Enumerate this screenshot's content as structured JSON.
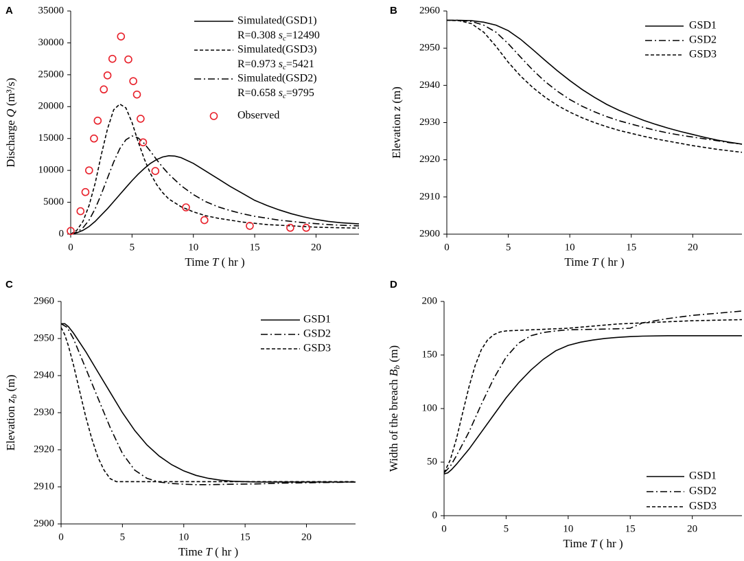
{
  "chart_data": [
    {
      "panel": "A",
      "type": "line",
      "xlabel_pre": "Time ",
      "xlabel_var": "T",
      "xlabel_unit": " ( hr )",
      "ylabel_pre": "Discharge ",
      "ylabel_var": "Q",
      "ylabel_unit": " (m³/s)",
      "xlim": [
        0,
        23.5
      ],
      "ylim": [
        0,
        35000
      ],
      "xticks": [
        0,
        5,
        10,
        15,
        20
      ],
      "yticks": [
        0,
        5000,
        10000,
        15000,
        20000,
        25000,
        30000,
        35000
      ],
      "series": [
        {
          "name": "Simulated(GSD1)",
          "style": "solid",
          "stats": "R=0.308  s_c=12490",
          "x": [
            0,
            0.5,
            1,
            1.5,
            2,
            2.5,
            3,
            3.5,
            4,
            4.5,
            5,
            5.5,
            6,
            6.5,
            7,
            7.5,
            8,
            8.5,
            9,
            10,
            11,
            12,
            13,
            14,
            15,
            16,
            17,
            18,
            19,
            20,
            21,
            22,
            23.5
          ],
          "y": [
            0,
            200,
            600,
            1200,
            2000,
            3000,
            4000,
            5100,
            6200,
            7300,
            8400,
            9400,
            10300,
            11100,
            11700,
            12100,
            12300,
            12250,
            12000,
            11100,
            9900,
            8700,
            7500,
            6400,
            5300,
            4500,
            3800,
            3200,
            2700,
            2300,
            2000,
            1800,
            1600
          ]
        },
        {
          "name": "Simulated(GSD3)",
          "style": "dash",
          "stats": "R=0.973  s_c=5421",
          "x": [
            0,
            0.5,
            1,
            1.5,
            2,
            2.5,
            3,
            3.5,
            4,
            4.5,
            5,
            5.5,
            6,
            6.5,
            7,
            7.5,
            8,
            9,
            10,
            11,
            12,
            13,
            14,
            15,
            16,
            17,
            18,
            19,
            20,
            21,
            22,
            23.5
          ],
          "y": [
            0,
            600,
            2000,
            4500,
            8000,
            12500,
            16500,
            19500,
            20400,
            19800,
            17500,
            14500,
            11800,
            9500,
            7800,
            6500,
            5500,
            4300,
            3500,
            2900,
            2500,
            2200,
            1900,
            1700,
            1500,
            1400,
            1300,
            1200,
            1100,
            1050,
            1000,
            950
          ]
        },
        {
          "name": "Simulated(GSD2)",
          "style": "dashdot",
          "stats": "R=0.658  s_c=9795",
          "x": [
            0,
            0.5,
            1,
            1.5,
            2,
            2.5,
            3,
            3.5,
            4,
            4.5,
            5,
            5.5,
            6,
            6.5,
            7,
            7.5,
            8,
            9,
            10,
            11,
            12,
            13,
            14,
            15,
            16,
            17,
            18,
            19,
            20,
            21,
            22,
            23.5
          ],
          "y": [
            0,
            300,
            1000,
            2200,
            4000,
            6300,
            8800,
            11300,
            13400,
            14800,
            15400,
            15100,
            14200,
            13000,
            11700,
            10500,
            9400,
            7600,
            6200,
            5100,
            4300,
            3700,
            3200,
            2800,
            2500,
            2200,
            2000,
            1800,
            1650,
            1500,
            1400,
            1300
          ]
        }
      ],
      "observed": {
        "name": "Observed",
        "x": [
          0,
          0.8,
          1.2,
          1.5,
          1.9,
          2.2,
          2.7,
          3,
          3.4,
          4.1,
          4.7,
          5.1,
          5.4,
          5.7,
          5.9,
          6.9,
          9.4,
          10.9,
          14.6,
          17.9,
          19.2
        ],
        "y": [
          500,
          3600,
          6600,
          10000,
          15000,
          17800,
          22700,
          24900,
          27500,
          31000,
          27400,
          24000,
          21900,
          18100,
          14400,
          9900,
          4200,
          2200,
          1300,
          1000,
          1000
        ]
      },
      "legend_position": "top-right"
    },
    {
      "panel": "B",
      "type": "line",
      "xlabel_pre": "Time ",
      "xlabel_var": "T",
      "xlabel_unit": " ( hr )",
      "ylabel_pre": "Elevation ",
      "ylabel_var": "z",
      "ylabel_unit": " (m)",
      "xlim": [
        0,
        24
      ],
      "ylim": [
        2900,
        2960
      ],
      "xticks": [
        0,
        5,
        10,
        15,
        20
      ],
      "yticks": [
        2900,
        2910,
        2920,
        2930,
        2940,
        2950,
        2960
      ],
      "series": [
        {
          "name": "GSD1",
          "style": "solid",
          "x": [
            0,
            1,
            2,
            3,
            4,
            5,
            6,
            7,
            8,
            9,
            10,
            11,
            12,
            13,
            14,
            15,
            16,
            17,
            18,
            19,
            20,
            21,
            22,
            23,
            24
          ],
          "y": [
            2957.5,
            2957.5,
            2957.4,
            2957,
            2956.2,
            2954.7,
            2952.4,
            2949.6,
            2946.7,
            2943.9,
            2941.3,
            2938.9,
            2936.8,
            2934.9,
            2933.3,
            2931.9,
            2930.6,
            2929.5,
            2928.5,
            2927.6,
            2926.8,
            2926,
            2925.3,
            2924.7,
            2924.2
          ]
        },
        {
          "name": "GSD2",
          "style": "dashdot",
          "x": [
            0,
            1,
            2,
            3,
            4,
            5,
            6,
            7,
            8,
            9,
            10,
            11,
            12,
            13,
            14,
            15,
            16,
            17,
            18,
            19,
            20,
            21,
            22,
            23,
            24
          ],
          "y": [
            2957.5,
            2957.5,
            2957.2,
            2956.2,
            2954.3,
            2951.2,
            2947.6,
            2944.1,
            2941,
            2938.4,
            2936.2,
            2934.4,
            2932.9,
            2931.6,
            2930.5,
            2929.6,
            2928.7,
            2927.9,
            2927.2,
            2926.6,
            2926.1,
            2925.6,
            2925.1,
            2924.6,
            2924.2
          ]
        },
        {
          "name": "GSD3",
          "style": "dash",
          "x": [
            0,
            1,
            2,
            3,
            4,
            5,
            6,
            7,
            8,
            9,
            10,
            11,
            12,
            13,
            14,
            15,
            16,
            17,
            18,
            19,
            20,
            21,
            22,
            23,
            24
          ],
          "y": [
            2957.5,
            2957.4,
            2956.6,
            2954.3,
            2950.5,
            2946.2,
            2942.5,
            2939.4,
            2936.8,
            2934.6,
            2932.8,
            2931.3,
            2930,
            2928.9,
            2927.9,
            2927.1,
            2926.3,
            2925.6,
            2925,
            2924.4,
            2923.8,
            2923.3,
            2922.8,
            2922.4,
            2922
          ]
        }
      ],
      "legend_position": "top-right"
    },
    {
      "panel": "C",
      "type": "line",
      "xlabel_pre": "Time ",
      "xlabel_var": "T",
      "xlabel_unit": " ( hr )",
      "ylabel_pre": "Elevation ",
      "ylabel_var": "z",
      "ylabel_sub": "b",
      "ylabel_unit": " (m)",
      "xlim": [
        0,
        24
      ],
      "ylim": [
        2900,
        2960
      ],
      "xticks": [
        0,
        5,
        10,
        15,
        20
      ],
      "yticks": [
        2900,
        2910,
        2920,
        2930,
        2940,
        2950,
        2960
      ],
      "series": [
        {
          "name": "GSD1",
          "style": "solid",
          "x": [
            0,
            0.3,
            0.6,
            1,
            2,
            3,
            4,
            5,
            6,
            7,
            8,
            9,
            10,
            11,
            12,
            13,
            14,
            15,
            16,
            18,
            20,
            24
          ],
          "y": [
            2954,
            2954,
            2953.2,
            2951.5,
            2946.5,
            2941,
            2935.5,
            2930,
            2925.2,
            2921.3,
            2918.3,
            2916,
            2914.3,
            2913.1,
            2912.3,
            2911.8,
            2911.5,
            2911.4,
            2911.3,
            2911.3,
            2911.3,
            2911.3
          ]
        },
        {
          "name": "GSD2",
          "style": "dashdot",
          "x": [
            0,
            0.5,
            1,
            2,
            3,
            4,
            5,
            6,
            7,
            8,
            9,
            10,
            11,
            12,
            14,
            16,
            18,
            20,
            24
          ],
          "y": [
            2954,
            2953,
            2950,
            2942,
            2934,
            2926,
            2919,
            2914.5,
            2912.3,
            2911.3,
            2910.9,
            2910.7,
            2910.6,
            2910.6,
            2910.7,
            2910.8,
            2911,
            2911.1,
            2911.3
          ]
        },
        {
          "name": "GSD3",
          "style": "dash",
          "x": [
            0,
            0.3,
            0.6,
            1,
            1.5,
            2,
            2.5,
            3,
            3.5,
            4,
            4.5,
            5,
            10,
            15,
            20,
            24
          ],
          "y": [
            2953,
            2951,
            2948,
            2943,
            2936,
            2929,
            2923,
            2918,
            2914.5,
            2912.2,
            2911.4,
            2911.4,
            2911.4,
            2911.4,
            2911.4,
            2911.4
          ]
        }
      ],
      "legend_position": "top-right"
    },
    {
      "panel": "D",
      "type": "line",
      "xlabel_pre": "Time ",
      "xlabel_var": "T",
      "xlabel_unit": " ( hr )",
      "ylabel_pre": "Width of the breach  ",
      "ylabel_var": "B",
      "ylabel_sub": "b",
      "ylabel_unit": " (m)",
      "xlim": [
        0,
        24
      ],
      "ylim": [
        0,
        200
      ],
      "xticks": [
        0,
        5,
        10,
        15,
        20
      ],
      "yticks": [
        0,
        50,
        100,
        150,
        200
      ],
      "series": [
        {
          "name": "GSD1",
          "style": "solid",
          "x": [
            0,
            0.3,
            0.6,
            1,
            2,
            3,
            4,
            5,
            6,
            7,
            8,
            9,
            10,
            11,
            12,
            13,
            14,
            15,
            16,
            18,
            20,
            24
          ],
          "y": [
            39,
            40,
            43,
            48,
            62,
            78,
            94,
            110,
            124,
            136,
            146,
            154,
            159,
            162,
            164,
            165.5,
            166.5,
            167.2,
            167.6,
            168,
            168,
            168
          ]
        },
        {
          "name": "GSD2",
          "style": "dashdot",
          "x": [
            0,
            0.5,
            1,
            2,
            3,
            4,
            5,
            6,
            7,
            8,
            9,
            10,
            12,
            14,
            15,
            16,
            18,
            20,
            22,
            24
          ],
          "y": [
            40,
            46,
            56,
            78,
            104,
            128,
            148,
            161,
            168,
            171,
            172.5,
            173.5,
            174,
            174.5,
            175,
            180,
            184,
            187,
            189,
            191
          ]
        },
        {
          "name": "GSD3",
          "style": "dash",
          "x": [
            0,
            0.5,
            1,
            1.5,
            2,
            2.5,
            3,
            3.5,
            4,
            4.5,
            5,
            6,
            8,
            10,
            12,
            14,
            16,
            18,
            20,
            22,
            24
          ],
          "y": [
            40,
            52,
            72,
            96,
            120,
            140,
            155,
            164,
            169,
            171.5,
            172.5,
            173,
            174,
            175,
            177,
            179,
            180,
            181,
            182,
            182.5,
            183
          ]
        }
      ],
      "legend_position": "bottom-right"
    }
  ]
}
